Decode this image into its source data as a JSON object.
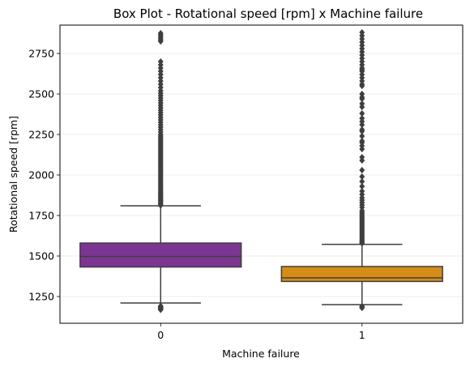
{
  "chart_data": {
    "type": "box",
    "title": "Box Plot - Rotational speed [rpm] x Machine failure",
    "xlabel": "Machine failure",
    "ylabel": "Rotational speed [rpm]",
    "categories": [
      "0",
      "1"
    ],
    "ylim": [
      1085,
      2925
    ],
    "yticks": [
      1250,
      1500,
      1750,
      2000,
      2250,
      2500,
      2750
    ],
    "grid": "y",
    "boxes": [
      {
        "category": "0",
        "color": "#7d3593",
        "whisker_low": 1210,
        "q1": 1432,
        "median": 1497,
        "q3": 1580,
        "whisker_high": 1810,
        "outliers_low": [
          1168,
          1172,
          1176,
          1180,
          1184,
          1188,
          1192
        ],
        "outliers_high": [
          1812,
          1820,
          1828,
          1836,
          1844,
          1852,
          1860,
          1868,
          1876,
          1884,
          1892,
          1900,
          1910,
          1920,
          1930,
          1940,
          1950,
          1960,
          1970,
          1980,
          1990,
          2000,
          2010,
          2020,
          2030,
          2040,
          2050,
          2060,
          2070,
          2080,
          2090,
          2100,
          2110,
          2120,
          2130,
          2140,
          2150,
          2160,
          2170,
          2180,
          2190,
          2200,
          2210,
          2220,
          2230,
          2240,
          2250,
          2265,
          2280,
          2295,
          2310,
          2325,
          2340,
          2355,
          2370,
          2385,
          2400,
          2415,
          2430,
          2445,
          2460,
          2475,
          2490,
          2505,
          2520,
          2540,
          2560,
          2580,
          2600,
          2620,
          2640,
          2660,
          2680,
          2700,
          2825,
          2835,
          2845,
          2855,
          2865,
          2875
        ]
      },
      {
        "category": "1",
        "color": "#d58d17",
        "whisker_low": 1200,
        "q1": 1343,
        "median": 1365,
        "q3": 1435,
        "whisker_high": 1572,
        "outliers_low": [
          1180,
          1185,
          1190
        ],
        "outliers_high": [
          1578,
          1585,
          1592,
          1600,
          1610,
          1620,
          1630,
          1640,
          1650,
          1660,
          1670,
          1680,
          1690,
          1700,
          1710,
          1720,
          1730,
          1740,
          1750,
          1760,
          1770,
          1780,
          1800,
          1815,
          1830,
          1845,
          1860,
          1880,
          1900,
          1930,
          1960,
          1990,
          2030,
          2090,
          2110,
          2160,
          2180,
          2200,
          2210,
          2240,
          2270,
          2280,
          2310,
          2330,
          2350,
          2380,
          2420,
          2440,
          2470,
          2480,
          2500,
          2550,
          2560,
          2580,
          2600,
          2620,
          2640,
          2650,
          2660,
          2680,
          2700,
          2720,
          2740,
          2760,
          2780,
          2800,
          2820,
          2840,
          2860,
          2880
        ]
      }
    ]
  }
}
